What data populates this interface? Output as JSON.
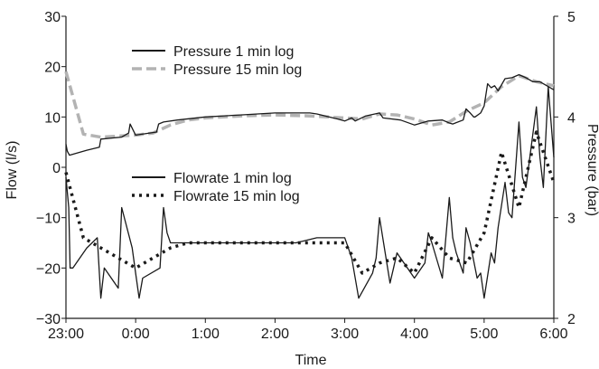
{
  "chart_data": {
    "type": "line",
    "xlabel": "Time",
    "ylabel_left": "Flow (l/s)",
    "ylabel_right": "Pressure (bar)",
    "xlim": [
      0,
      7
    ],
    "ylim_left": [
      -30,
      30
    ],
    "ylim_right": [
      2,
      5
    ],
    "x_ticks": [
      {
        "v": 0,
        "label": "23:00"
      },
      {
        "v": 1,
        "label": "0:00"
      },
      {
        "v": 2,
        "label": "1:00"
      },
      {
        "v": 3,
        "label": "2:00"
      },
      {
        "v": 4,
        "label": "3:00"
      },
      {
        "v": 5,
        "label": "4:00"
      },
      {
        "v": 6,
        "label": "5:00"
      },
      {
        "v": 7,
        "label": "6:00"
      }
    ],
    "y_left_ticks": [
      -30,
      -20,
      -10,
      0,
      10,
      20,
      30
    ],
    "y_left_tick_labels": [
      "−30",
      "−20",
      "−10",
      "0",
      "10",
      "20",
      "30"
    ],
    "y_right_ticks": [
      2,
      3,
      4,
      5
    ],
    "y_right_tick_labels": [
      "2",
      "3",
      "4",
      "5"
    ],
    "x_unit": "hours from 23:00",
    "grid": false,
    "legends": [
      {
        "position": "upper-left",
        "entries": [
          "Pressure 1 min log",
          "Pressure 15 min log"
        ]
      },
      {
        "position": "middle-left",
        "entries": [
          "Flowrate 1 min log",
          "Flowrate 15 min log"
        ]
      }
    ],
    "series": [
      {
        "name": "Pressure 1 min log",
        "axis": "right",
        "style": "solid",
        "color": "#1a1a1a",
        "x": [
          0,
          0.02,
          0.05,
          0.3,
          0.48,
          0.5,
          0.8,
          0.9,
          0.92,
          1.0,
          1.2,
          1.3,
          1.33,
          1.4,
          1.6,
          2.0,
          2.5,
          3.0,
          3.5,
          3.6,
          3.9,
          4.0,
          4.1,
          4.15,
          4.3,
          4.5,
          4.55,
          4.8,
          5.0,
          5.2,
          5.4,
          5.5,
          5.55,
          5.7,
          5.74,
          5.8,
          5.85,
          5.87,
          5.95,
          6.0,
          6.05,
          6.1,
          6.15,
          6.2,
          6.3,
          6.4,
          6.5,
          6.6,
          6.7,
          6.8,
          6.9,
          7.0
        ],
        "y": [
          3.73,
          3.66,
          3.62,
          3.67,
          3.7,
          3.78,
          3.8,
          3.84,
          3.93,
          3.82,
          3.84,
          3.85,
          3.93,
          3.95,
          3.97,
          4.0,
          4.02,
          4.04,
          4.04,
          4.03,
          3.98,
          3.96,
          3.99,
          3.96,
          4.01,
          4.04,
          3.99,
          3.97,
          3.92,
          3.96,
          3.97,
          3.94,
          3.93,
          3.97,
          4.08,
          4.04,
          4.0,
          4.0,
          4.04,
          4.11,
          4.33,
          4.29,
          4.31,
          4.26,
          4.38,
          4.39,
          4.42,
          4.39,
          4.35,
          4.35,
          4.31,
          4.27
        ]
      },
      {
        "name": "Pressure 15 min log",
        "axis": "right",
        "style": "dashed",
        "color": "#b3b3b3",
        "x": [
          0,
          0.25,
          0.5,
          0.75,
          1.0,
          1.25,
          1.5,
          1.75,
          2.0,
          2.5,
          3.0,
          3.5,
          4.0,
          4.25,
          4.5,
          4.75,
          5.0,
          5.25,
          5.5,
          5.75,
          6.0,
          6.25,
          6.5,
          6.75,
          7.0
        ],
        "y": [
          4.45,
          3.83,
          3.8,
          3.81,
          3.82,
          3.84,
          3.92,
          3.97,
          3.99,
          4.01,
          4.02,
          4.01,
          3.99,
          3.98,
          4.03,
          4.02,
          3.98,
          3.92,
          3.95,
          4.06,
          4.14,
          4.3,
          4.41,
          4.35,
          4.31
        ]
      },
      {
        "name": "Flowrate 1 min log",
        "axis": "left",
        "style": "solid",
        "color": "#1a1a1a",
        "x": [
          0,
          0.04,
          0.06,
          0.1,
          0.3,
          0.45,
          0.5,
          0.55,
          0.6,
          0.75,
          0.8,
          0.95,
          1.0,
          1.05,
          1.1,
          1.35,
          1.4,
          1.45,
          1.5,
          1.6,
          1.8,
          1.95,
          2.0,
          2.5,
          3.0,
          3.3,
          3.6,
          3.85,
          4.0,
          4.1,
          4.2,
          4.4,
          4.45,
          4.5,
          4.65,
          4.7,
          4.75,
          5.0,
          5.15,
          5.2,
          5.25,
          5.4,
          5.5,
          5.55,
          5.6,
          5.7,
          5.74,
          5.8,
          5.9,
          5.95,
          6.0,
          6.1,
          6.15,
          6.2,
          6.3,
          6.35,
          6.4,
          6.5,
          6.55,
          6.6,
          6.75,
          6.8,
          6.85,
          6.92,
          7.0
        ],
        "y": [
          -2,
          -8,
          -20,
          -20,
          -16,
          -14,
          -26,
          -20,
          -21,
          -24,
          -8,
          -16,
          -21,
          -26,
          -22,
          -20,
          -8,
          -13,
          -15,
          -15,
          -15,
          -15,
          -15,
          -15,
          -15,
          -15,
          -14,
          -14,
          -14,
          -18,
          -26,
          -21,
          -18,
          -10,
          -23,
          -20,
          -17,
          -22,
          -19,
          -13,
          -15,
          -22,
          -6,
          -14,
          -17,
          -21,
          -12,
          -15,
          -22,
          -21,
          -26,
          -17,
          -19,
          -12,
          -3,
          -9,
          -10,
          9,
          -2,
          -4,
          12,
          2,
          -4,
          16,
          2
        ]
      },
      {
        "name": "Flowrate 15 min log",
        "axis": "left",
        "style": "dotted",
        "color": "#1a1a1a",
        "x": [
          0,
          0.25,
          0.5,
          0.75,
          1.0,
          1.25,
          1.5,
          1.75,
          2.0,
          2.5,
          3.0,
          3.5,
          4.0,
          4.25,
          4.5,
          4.75,
          5.0,
          5.25,
          5.5,
          5.75,
          6.0,
          6.25,
          6.5,
          6.75,
          7.0
        ],
        "y": [
          -1,
          -14,
          -16,
          -18,
          -20,
          -18,
          -16,
          -15,
          -15,
          -15,
          -15,
          -15,
          -15,
          -21,
          -19,
          -18,
          -21,
          -14,
          -18,
          -19,
          -13,
          3,
          -8,
          7,
          -3
        ]
      }
    ]
  }
}
